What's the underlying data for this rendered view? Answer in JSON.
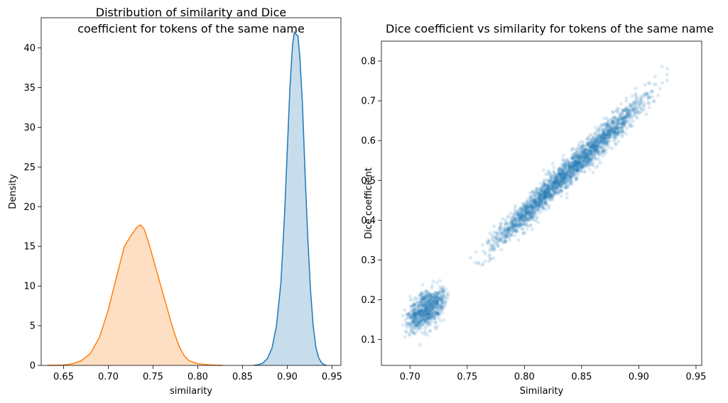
{
  "chart_data": [
    {
      "type": "area",
      "title_lines": [
        "Distribution of similarity and Dice",
        "coefficient for tokens of the same name"
      ],
      "xlabel": "similarity",
      "ylabel": "Density",
      "xlim": [
        0.625,
        0.96
      ],
      "ylim": [
        0,
        43.8
      ],
      "x_ticks": [
        "0.65",
        "0.70",
        "0.75",
        "0.80",
        "0.85",
        "0.90",
        "0.95"
      ],
      "y_ticks": [
        "0",
        "5",
        "10",
        "15",
        "20",
        "25",
        "30",
        "35",
        "40"
      ],
      "grid": false,
      "series": [
        {
          "color": "#1f77b4",
          "points": [
            [
              0.863,
              0
            ],
            [
              0.868,
              0.1
            ],
            [
              0.873,
              0.3
            ],
            [
              0.878,
              0.9
            ],
            [
              0.883,
              2.2
            ],
            [
              0.888,
              5.0
            ],
            [
              0.893,
              10.5
            ],
            [
              0.897,
              19.0
            ],
            [
              0.9,
              27.0
            ],
            [
              0.903,
              35.0
            ],
            [
              0.906,
              40.5
            ],
            [
              0.908,
              42.0
            ],
            [
              0.91,
              41.7
            ],
            [
              0.912,
              41.5
            ],
            [
              0.914,
              39.0
            ],
            [
              0.917,
              33.0
            ],
            [
              0.92,
              24.0
            ],
            [
              0.923,
              16.0
            ],
            [
              0.926,
              9.5
            ],
            [
              0.929,
              5.0
            ],
            [
              0.932,
              2.3
            ],
            [
              0.935,
              1.0
            ],
            [
              0.938,
              0.4
            ],
            [
              0.941,
              0.1
            ],
            [
              0.944,
              0
            ]
          ]
        },
        {
          "color": "#ff7f0e",
          "points": [
            [
              0.632,
              0
            ],
            [
              0.65,
              0.05
            ],
            [
              0.66,
              0.2
            ],
            [
              0.67,
              0.6
            ],
            [
              0.68,
              1.5
            ],
            [
              0.69,
              3.5
            ],
            [
              0.7,
              7.0
            ],
            [
              0.71,
              11.5
            ],
            [
              0.718,
              15.0
            ],
            [
              0.725,
              16.3
            ],
            [
              0.732,
              17.4
            ],
            [
              0.736,
              17.7
            ],
            [
              0.74,
              17.2
            ],
            [
              0.745,
              15.5
            ],
            [
              0.75,
              13.5
            ],
            [
              0.755,
              11.5
            ],
            [
              0.76,
              9.5
            ],
            [
              0.765,
              7.5
            ],
            [
              0.77,
              5.5
            ],
            [
              0.775,
              3.7
            ],
            [
              0.78,
              2.2
            ],
            [
              0.785,
              1.2
            ],
            [
              0.79,
              0.6
            ],
            [
              0.8,
              0.2
            ],
            [
              0.815,
              0.05
            ],
            [
              0.828,
              0
            ]
          ]
        }
      ]
    },
    {
      "type": "scatter",
      "title": "Dice coefficient vs similarity for tokens of the same name",
      "xlabel": "Similarity",
      "ylabel": "Dice coefficient",
      "xlim": [
        0.675,
        0.955
      ],
      "ylim": [
        0.035,
        0.85
      ],
      "x_ticks": [
        "0.70",
        "0.75",
        "0.80",
        "0.85",
        "0.90",
        "0.95"
      ],
      "y_ticks": [
        "0.1",
        "0.2",
        "0.3",
        "0.4",
        "0.5",
        "0.6",
        "0.7",
        "0.8"
      ],
      "grid": false,
      "color": "#1f77b4",
      "point_alpha": 0.15,
      "clusters": [
        {
          "x_range": [
            0.688,
            0.74
          ],
          "trend": [
            [
              0.69,
              0.13
            ],
            [
              0.74,
              0.22
            ]
          ],
          "spread": 0.022,
          "count": 700
        },
        {
          "x_range": [
            0.74,
            0.94
          ],
          "trend": [
            [
              0.74,
              0.25
            ],
            [
              0.94,
              0.8
            ]
          ],
          "spread": 0.018,
          "count": 2200
        }
      ]
    }
  ]
}
